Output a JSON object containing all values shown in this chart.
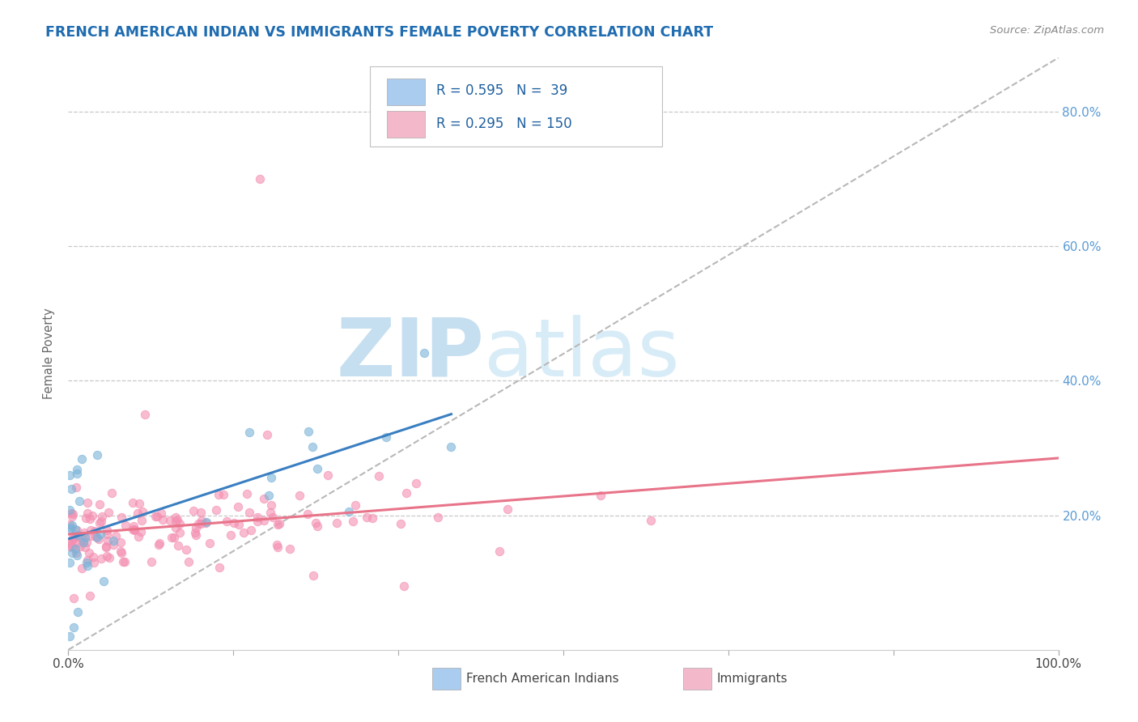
{
  "title": "FRENCH AMERICAN INDIAN VS IMMIGRANTS FEMALE POVERTY CORRELATION CHART",
  "source": "Source: ZipAtlas.com",
  "ylabel": "Female Poverty",
  "ylim": [
    0.0,
    0.88
  ],
  "xlim": [
    0.0,
    1.0
  ],
  "legend_blue_R": "0.595",
  "legend_blue_N": "39",
  "legend_pink_R": "0.295",
  "legend_pink_N": "150",
  "legend_label_blue": "French American Indians",
  "legend_label_pink": "Immigrants",
  "blue_dot_color": "#7ab3d8",
  "pink_dot_color": "#f48fb1",
  "blue_line_color": "#3a7fc1",
  "pink_line_color": "#e8748a",
  "diag_color": "#b8b8b8",
  "background_color": "#ffffff",
  "grid_color": "#c8c8c8",
  "title_color": "#1f6cb0",
  "watermark_zip": "ZIP",
  "watermark_atlas": "atlas",
  "watermark_color": "#d0e4f4",
  "right_tick_color": "#5b9bd5"
}
